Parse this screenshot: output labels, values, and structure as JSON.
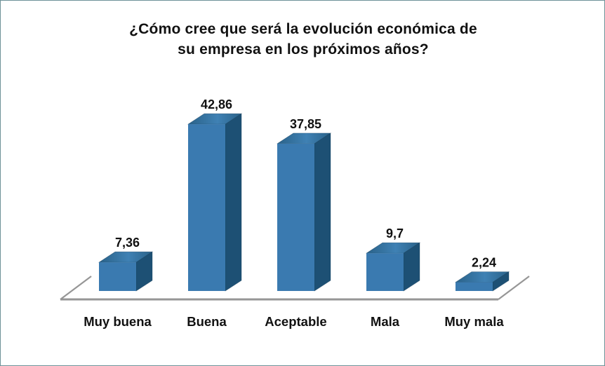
{
  "frame": {
    "background": "#ffffff",
    "border_color": "#6e9298"
  },
  "chart_data": {
    "type": "bar",
    "style": "3d-bar",
    "title": "¿Cómo cree que será la evolución económica de su empresa en los próximos años?",
    "title_lines": [
      "¿Cómo cree que será la evolución económica de",
      "su empresa en los próximos años?"
    ],
    "categories": [
      "Muy buena",
      "Buena",
      "Aceptable",
      "Mala",
      "Muy mala"
    ],
    "values": [
      7.36,
      42.86,
      37.85,
      9.7,
      2.24
    ],
    "value_labels": [
      "7,36",
      "42,86",
      "37,85",
      "9,7",
      "2,24"
    ],
    "xlabel": "",
    "ylabel": "",
    "ylim": [
      0,
      45
    ],
    "grid": false,
    "legend": false,
    "colors": {
      "bar_front": "#3a7ab0",
      "bar_side": "#1d5074",
      "bar_top_dark": "#2a6289",
      "bar_top_light": "#3f81b4",
      "axis_line": "#969696",
      "label_text": "#111111"
    }
  }
}
